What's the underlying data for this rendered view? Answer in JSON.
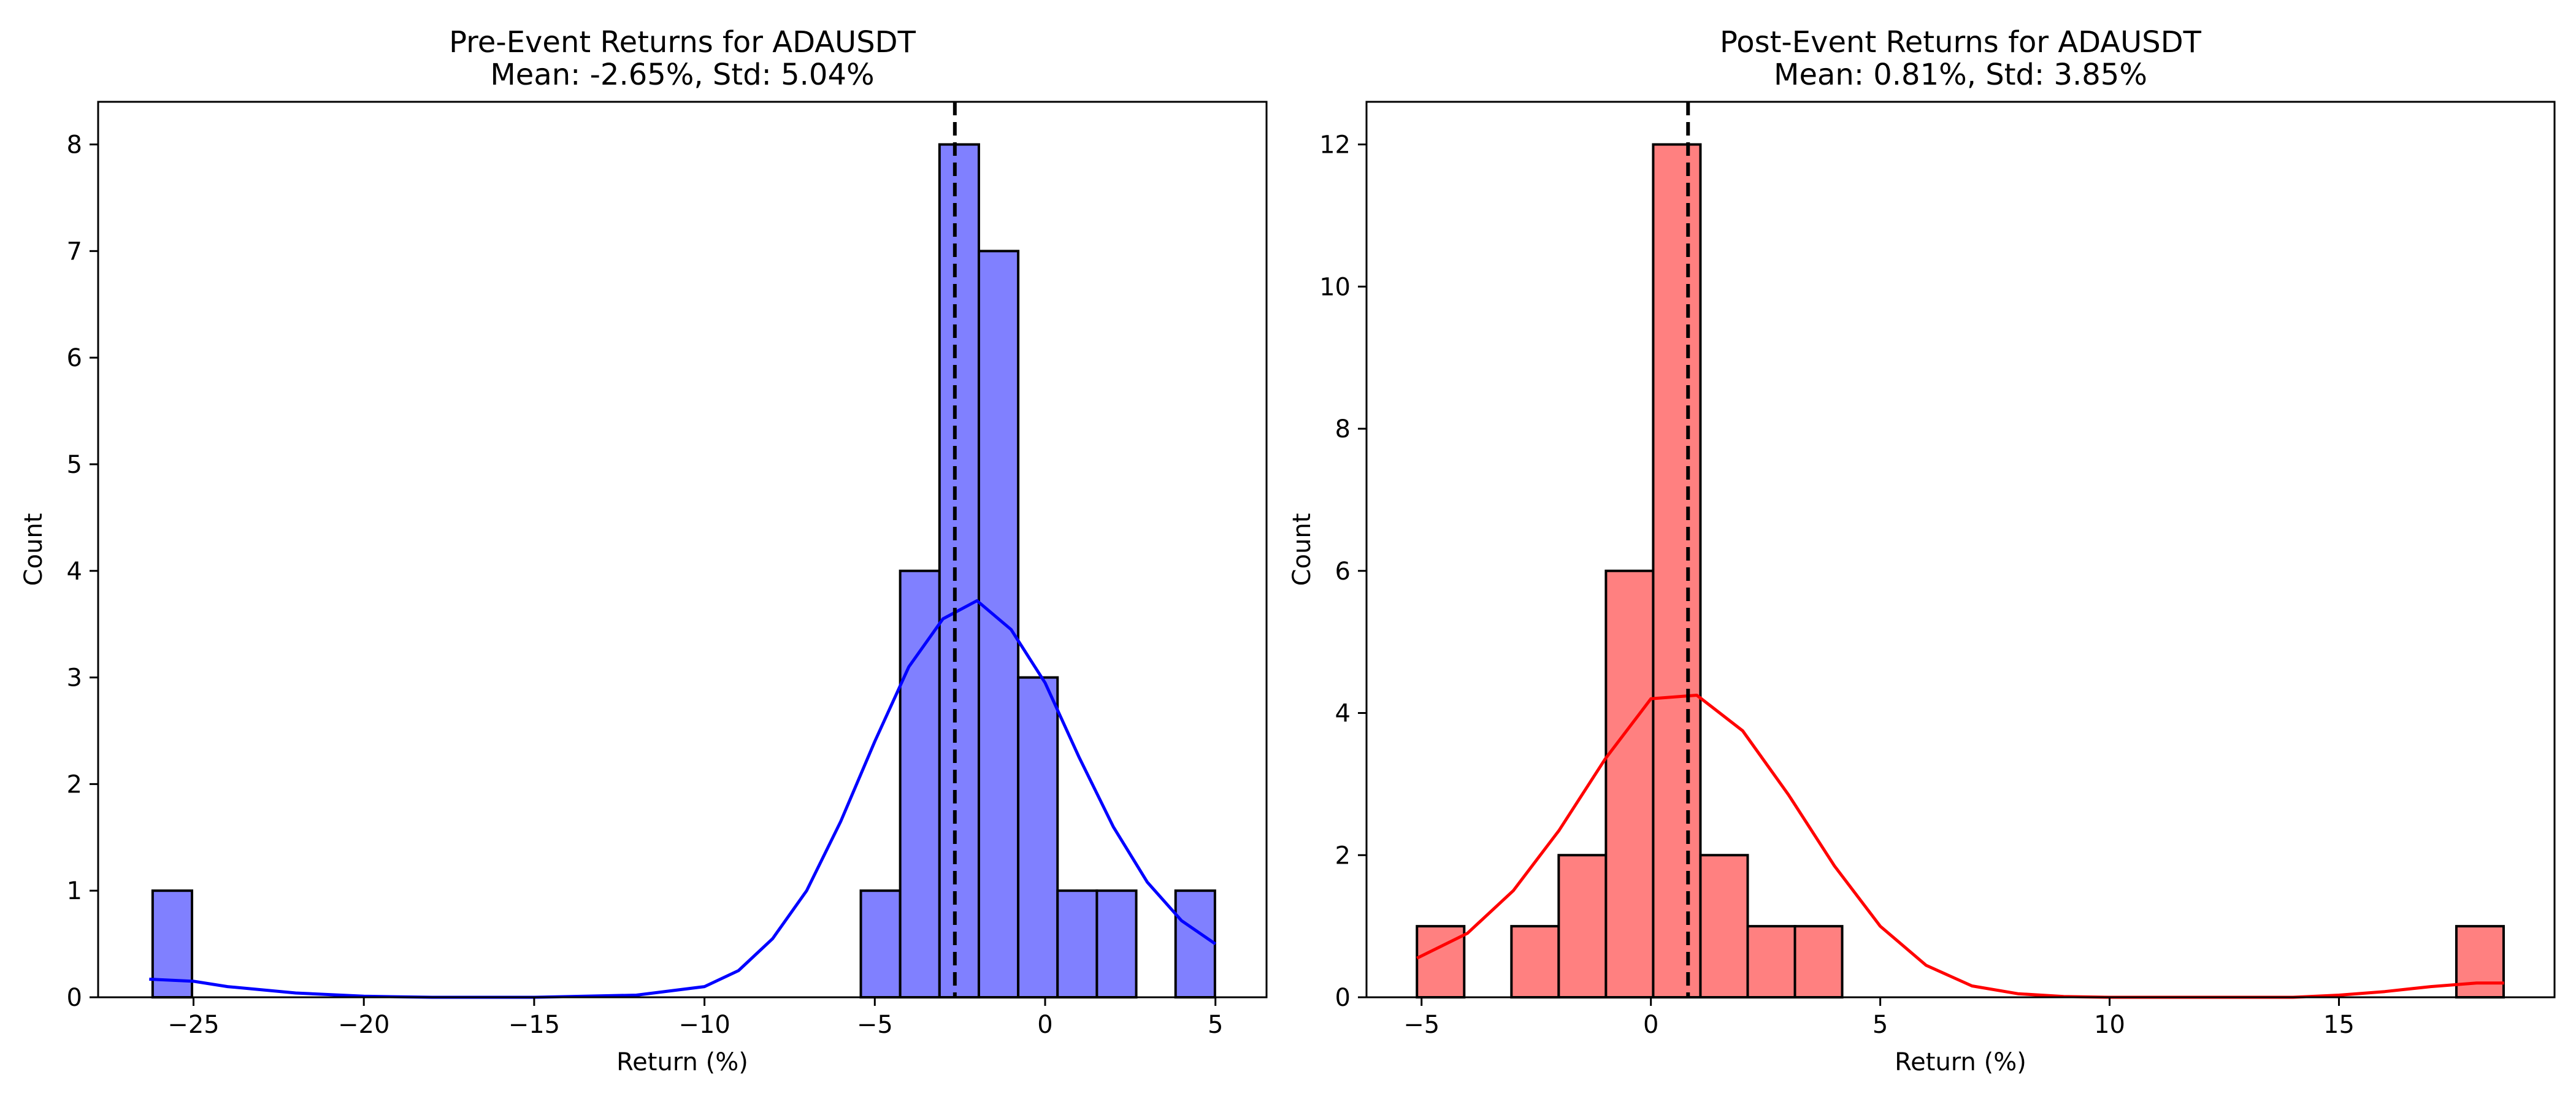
{
  "chart_data": [
    {
      "type": "bar",
      "title": "Pre-Event Returns for ADAUSDT",
      "subtitle": "Mean: -2.65%, Std: 5.04%",
      "xlabel": "Return (%)",
      "ylabel": "Count",
      "xlim": [
        -27.8,
        6.5
      ],
      "ylim": [
        0,
        8.4
      ],
      "xticks": [
        -25,
        -20,
        -15,
        -10,
        -5,
        0,
        5
      ],
      "yticks": [
        0,
        1,
        2,
        3,
        4,
        5,
        6,
        7,
        8
      ],
      "bin_width": 1.155,
      "bins": [
        {
          "left": -26.2,
          "count": 1
        },
        {
          "left": -5.41,
          "count": 1
        },
        {
          "left": -4.255,
          "count": 4
        },
        {
          "left": -3.1,
          "count": 8
        },
        {
          "left": -1.945,
          "count": 7
        },
        {
          "left": -0.79,
          "count": 3
        },
        {
          "left": 0.365,
          "count": 1
        },
        {
          "left": 1.52,
          "count": 1
        },
        {
          "left": 3.83,
          "count": 1
        }
      ],
      "mean_line": -2.65,
      "kde": {
        "x": [
          -26.3,
          -25,
          -24,
          -22,
          -20,
          -18,
          -15,
          -12,
          -10,
          -9,
          -8,
          -7,
          -6,
          -5,
          -4,
          -3,
          -2,
          -1,
          0,
          1,
          2,
          3,
          4,
          5
        ],
        "y": [
          0.17,
          0.15,
          0.1,
          0.04,
          0.01,
          0.0,
          0.0,
          0.02,
          0.1,
          0.25,
          0.55,
          1.0,
          1.65,
          2.4,
          3.1,
          3.55,
          3.72,
          3.45,
          2.95,
          2.25,
          1.6,
          1.08,
          0.72,
          0.5
        ]
      },
      "colors": {
        "bar": "#8080ff",
        "edge": "#000000",
        "kde": "#0000ff",
        "mean": "#000000"
      }
    },
    {
      "type": "bar",
      "title": "Post-Event Returns for ADAUSDT",
      "subtitle": "Mean: 0.81%, Std: 3.85%",
      "xlabel": "Return (%)",
      "ylabel": "Count",
      "xlim": [
        -6.2,
        19.7
      ],
      "ylim": [
        0,
        12.6
      ],
      "xticks": [
        -5,
        0,
        5,
        10,
        15
      ],
      "yticks": [
        0,
        2,
        4,
        6,
        8,
        10,
        12
      ],
      "bin_width": 1.03,
      "bins": [
        {
          "left": -5.1,
          "count": 1
        },
        {
          "left": -3.04,
          "count": 1
        },
        {
          "left": -2.01,
          "count": 2
        },
        {
          "left": -0.98,
          "count": 6
        },
        {
          "left": 0.05,
          "count": 12
        },
        {
          "left": 1.08,
          "count": 2
        },
        {
          "left": 2.11,
          "count": 1
        },
        {
          "left": 3.14,
          "count": 1
        },
        {
          "left": 17.56,
          "count": 1
        }
      ],
      "mean_line": 0.81,
      "kde": {
        "x": [
          -5.1,
          -4,
          -3,
          -2,
          -1,
          0,
          1,
          2,
          3,
          4,
          5,
          6,
          7,
          8,
          9,
          10,
          12,
          14,
          15,
          16,
          17,
          18,
          18.6
        ],
        "y": [
          0.55,
          0.9,
          1.5,
          2.35,
          3.35,
          4.2,
          4.25,
          3.75,
          2.85,
          1.85,
          1.0,
          0.45,
          0.16,
          0.05,
          0.01,
          0.0,
          0.0,
          0.0,
          0.03,
          0.08,
          0.15,
          0.2,
          0.2
        ]
      },
      "colors": {
        "bar": "#ff8080",
        "edge": "#000000",
        "kde": "#ff0000",
        "mean": "#000000"
      }
    }
  ]
}
